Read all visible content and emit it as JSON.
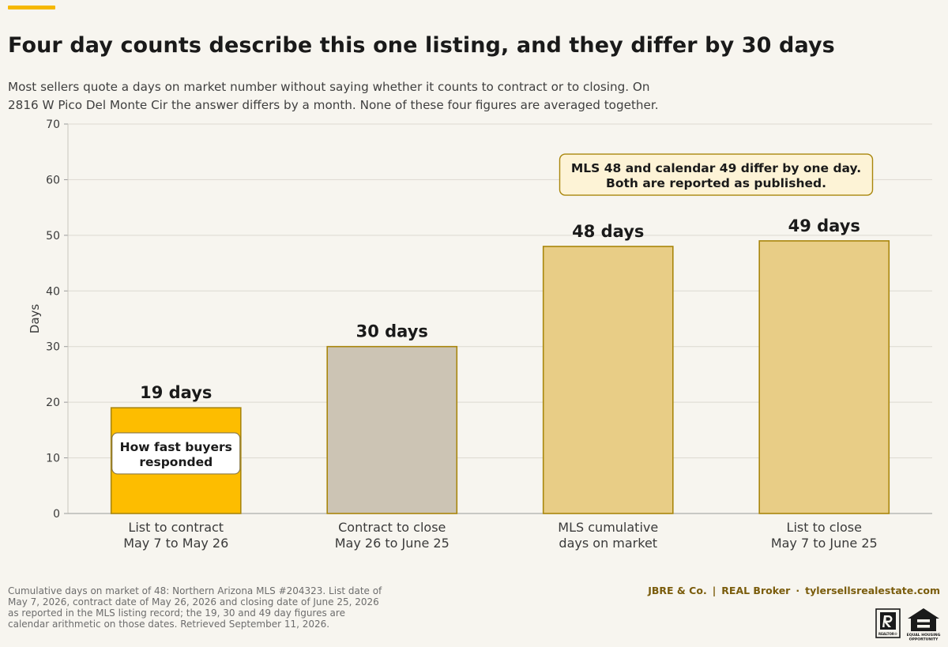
{
  "title": "Four day counts describe this one listing, and they differ by 30 days",
  "subtitle_lines": [
    "Most sellers quote a days on market number without saying whether it counts to contract or to closing. On",
    "2816 W Pico Del Monte Cir the answer differs by a month. None of these four figures are averaged together."
  ],
  "chart_data": {
    "type": "bar",
    "categories": [
      [
        "List to contract",
        "May 7 to May 26"
      ],
      [
        "Contract to close",
        "May 26 to June 25"
      ],
      [
        "MLS cumulative",
        "days on market"
      ],
      [
        "List to close",
        "May 7 to June 25"
      ]
    ],
    "values": [
      19,
      30,
      48,
      49
    ],
    "value_labels": [
      "19 days",
      "30 days",
      "48 days",
      "49 days"
    ],
    "bar_colors": [
      "#fdbd00",
      "#ccc4b4",
      "#e8cd86",
      "#e8cd86"
    ],
    "bar_stroke": "#a9860c",
    "ylabel": "Days",
    "ylim": [
      0,
      70
    ],
    "yticks": [
      0,
      10,
      20,
      30,
      40,
      50,
      60,
      70
    ],
    "grid": true,
    "annotations": [
      {
        "text": [
          "How fast buyers",
          "responded"
        ],
        "anchor_category": 0
      },
      {
        "text": [
          "MLS 48 and calendar 49 differ by one day.",
          "Both are reported as published."
        ],
        "anchor_category": 2
      }
    ]
  },
  "footnote_lines": [
    "Cumulative days on market of 48: Northern Arizona MLS #204323. List date of",
    "May 7, 2026, contract date of May 26, 2026 and closing date of June 25, 2026",
    "as reported in the MLS listing record; the 19, 30 and 49 day figures are",
    "calendar arithmetic on those dates. Retrieved September 11, 2026."
  ],
  "brand": {
    "company": "JBRE & Co.",
    "sep1": "|",
    "broker": "REAL Broker",
    "sep2": "·",
    "website": "tylersellsrealestate.com"
  },
  "logos": {
    "realtor_text": "REALTOR®",
    "eho_text": [
      "EQUAL HOUSING",
      "OPPORTUNITY"
    ]
  },
  "colors": {
    "accent": "#f5b800",
    "background": "#f7f5ef",
    "annotation_fill_primary": "#ffffff",
    "annotation_fill_secondary": "#fdf3d6",
    "annotation_stroke": "#a9860c"
  }
}
